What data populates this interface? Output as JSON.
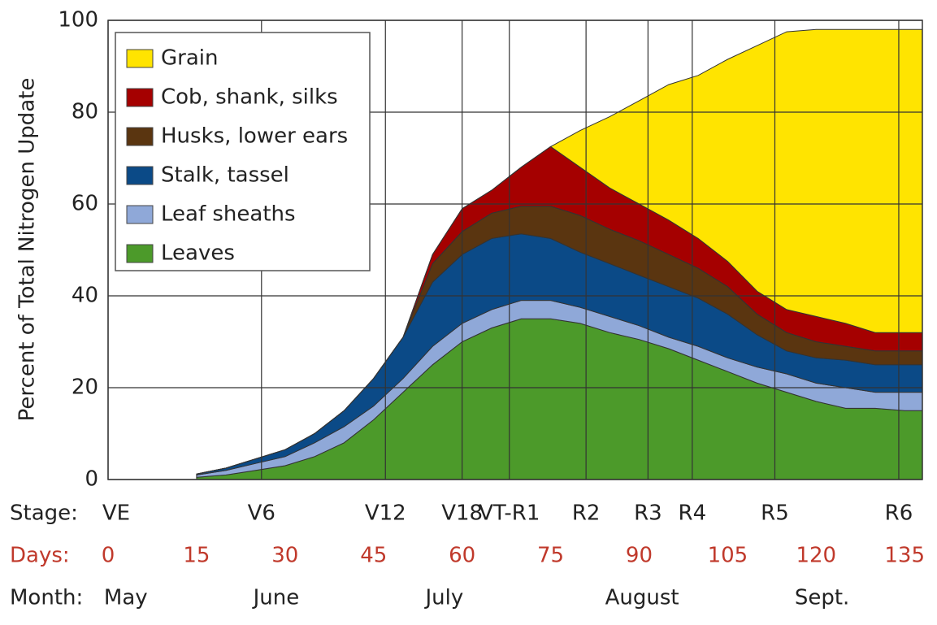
{
  "chart_data": {
    "type": "stacked-area",
    "y_label": "Percent of Total Nitrogen Update",
    "x_label": "Days:",
    "stage_label": "Stage:",
    "month_label": "Month:",
    "x": [
      15,
      20,
      25,
      30,
      35,
      40,
      45,
      50,
      55,
      60,
      65,
      70,
      75,
      80,
      85,
      90,
      95,
      100,
      105,
      110,
      115,
      120,
      125,
      130,
      135,
      138
    ],
    "xlim": [
      0,
      138
    ],
    "xticks": [
      0,
      15,
      30,
      45,
      60,
      75,
      90,
      105,
      120,
      135
    ],
    "ylim": [
      0,
      100
    ],
    "yticks": [
      0,
      20,
      40,
      60,
      80,
      100
    ],
    "grid": true,
    "legend": "upper left",
    "stages": [
      {
        "label": "VE",
        "x": 0
      },
      {
        "label": "V6",
        "x": 26
      },
      {
        "label": "V12",
        "x": 47
      },
      {
        "label": "V18",
        "x": 60
      },
      {
        "label": "VT-R1",
        "x": 68
      },
      {
        "label": "R2",
        "x": 81
      },
      {
        "label": "R3",
        "x": 91.5
      },
      {
        "label": "R4",
        "x": 99
      },
      {
        "label": "R5",
        "x": 113
      },
      {
        "label": "R6",
        "x": 134
      }
    ],
    "months": [
      {
        "label": "May",
        "x": 3
      },
      {
        "label": "June",
        "x": 28.5
      },
      {
        "label": "July",
        "x": 57
      },
      {
        "label": "August",
        "x": 90.5
      },
      {
        "label": "Sept.",
        "x": 121
      }
    ],
    "series": [
      {
        "name": "Leaves",
        "color": "#4c9a2a",
        "values": [
          0.5,
          1,
          2,
          3,
          5,
          8,
          13,
          19,
          25,
          30,
          33,
          35,
          35,
          34,
          32,
          30.5,
          28.5,
          26,
          23.5,
          21,
          19,
          17,
          15.5,
          15.5,
          15,
          15
        ]
      },
      {
        "name": "Leaf sheaths",
        "color": "#8fa8d8",
        "values": [
          0.5,
          1,
          1.5,
          2,
          3,
          3.5,
          3,
          3,
          4,
          4,
          4,
          4,
          4,
          3.5,
          3.5,
          3,
          2.5,
          3,
          3,
          3.5,
          4,
          4,
          4.5,
          3.5,
          4,
          4
        ]
      },
      {
        "name": "Stalk, tassel",
        "color": "#0b4a87",
        "values": [
          0.2,
          0.5,
          1,
          1.5,
          2,
          3.5,
          6,
          9,
          14,
          15,
          15.5,
          14.5,
          13.5,
          12,
          11.5,
          11,
          11,
          10.5,
          9.5,
          7,
          5,
          5.5,
          6,
          6,
          6,
          6
        ]
      },
      {
        "name": "Husks, lower ears",
        "color": "#5a3510",
        "values": [
          0,
          0,
          0,
          0,
          0,
          0,
          0,
          0,
          4,
          5,
          5.5,
          6,
          7,
          8,
          7.5,
          7.5,
          7,
          6.5,
          6,
          4.5,
          4,
          3.5,
          3,
          3,
          3,
          3
        ]
      },
      {
        "name": "Cob, shank, silks",
        "color": "#a50000",
        "values": [
          0,
          0,
          0,
          0,
          0,
          0,
          0,
          0,
          2,
          5,
          5,
          8.5,
          13,
          10.5,
          9,
          8,
          7.5,
          6.5,
          5.5,
          5,
          5,
          5.5,
          5,
          4,
          4,
          4
        ]
      },
      {
        "name": "Grain",
        "color": "#ffe400",
        "values": [
          0,
          0,
          0,
          0,
          0,
          0,
          0,
          0,
          0,
          0,
          0,
          0,
          0,
          8,
          15.5,
          22.5,
          29.5,
          35.5,
          44,
          53.5,
          60.5,
          62.5,
          64,
          66,
          66,
          66
        ]
      }
    ]
  }
}
